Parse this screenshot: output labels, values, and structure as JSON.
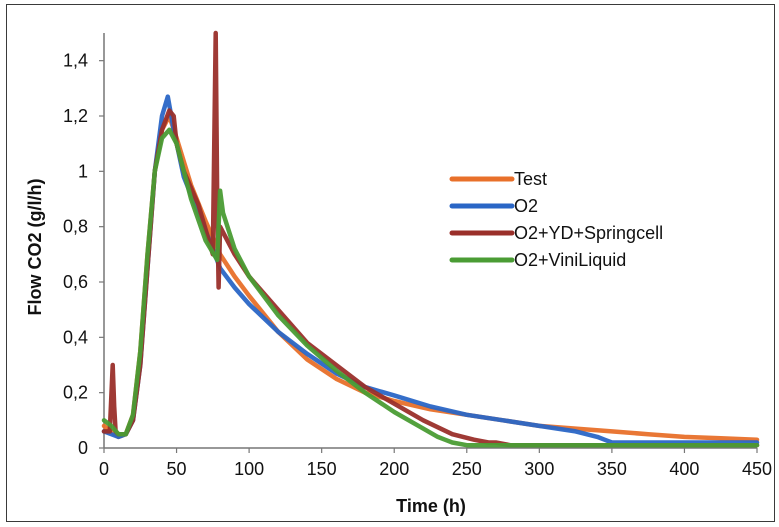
{
  "chart_data": {
    "type": "line",
    "xlabel": "Time (h)",
    "ylabel": "Flow CO2 (g/l/h)",
    "xlim": [
      0,
      450
    ],
    "ylim": [
      0,
      1.5
    ],
    "x_ticks": [
      "0",
      "50",
      "100",
      "150",
      "200",
      "250",
      "300",
      "350",
      "400",
      "450"
    ],
    "y_ticks": [
      "0",
      "0,2",
      "0,4",
      "0,6",
      "0,8",
      "1",
      "1,2",
      "1,4"
    ],
    "grid": false,
    "legend_position": "right",
    "series": [
      {
        "name": "Test",
        "color": "#e8702a",
        "x": [
          0,
          5,
          10,
          15,
          20,
          25,
          30,
          35,
          40,
          45,
          50,
          60,
          70,
          80,
          90,
          100,
          120,
          140,
          160,
          180,
          200,
          225,
          250,
          275,
          300,
          325,
          350,
          375,
          400,
          425,
          450
        ],
        "y": [
          0.08,
          0.06,
          0.04,
          0.05,
          0.12,
          0.35,
          0.7,
          1.0,
          1.15,
          1.2,
          1.12,
          0.95,
          0.82,
          0.7,
          0.62,
          0.55,
          0.42,
          0.32,
          0.25,
          0.2,
          0.17,
          0.14,
          0.12,
          0.1,
          0.08,
          0.07,
          0.06,
          0.05,
          0.04,
          0.035,
          0.03
        ]
      },
      {
        "name": "O2",
        "color": "#2a66c6",
        "x": [
          0,
          5,
          10,
          15,
          20,
          25,
          30,
          35,
          40,
          44,
          48,
          55,
          65,
          75,
          80,
          90,
          100,
          120,
          140,
          160,
          180,
          200,
          225,
          250,
          275,
          300,
          325,
          340,
          345,
          350,
          375,
          400,
          425,
          450
        ],
        "y": [
          0.06,
          0.05,
          0.04,
          0.05,
          0.1,
          0.3,
          0.65,
          1.0,
          1.2,
          1.27,
          1.15,
          0.98,
          0.85,
          0.72,
          0.65,
          0.58,
          0.52,
          0.42,
          0.34,
          0.27,
          0.22,
          0.19,
          0.15,
          0.12,
          0.1,
          0.08,
          0.06,
          0.04,
          0.03,
          0.02,
          0.02,
          0.02,
          0.02,
          0.02
        ]
      },
      {
        "name": "O2+YD+Springcell",
        "color": "#9a2f2a",
        "x": [
          0,
          4,
          6,
          7,
          8,
          10,
          15,
          20,
          25,
          30,
          35,
          40,
          45,
          48,
          50,
          55,
          65,
          75,
          77,
          78,
          79,
          80,
          90,
          100,
          120,
          140,
          160,
          180,
          200,
          220,
          240,
          255,
          265,
          270,
          280,
          300,
          350,
          400,
          450
        ],
        "y": [
          0.06,
          0.06,
          0.3,
          0.15,
          0.06,
          0.05,
          0.05,
          0.1,
          0.3,
          0.65,
          1.0,
          1.15,
          1.22,
          1.2,
          1.1,
          1.0,
          0.88,
          0.7,
          1.5,
          0.9,
          0.58,
          0.8,
          0.7,
          0.62,
          0.5,
          0.38,
          0.3,
          0.22,
          0.16,
          0.1,
          0.05,
          0.03,
          0.02,
          0.02,
          0.01,
          0.01,
          0.01,
          0.01,
          0.01
        ]
      },
      {
        "name": "O2+ViniLiquid",
        "color": "#4a9c34",
        "x": [
          0,
          5,
          10,
          15,
          20,
          25,
          30,
          35,
          40,
          45,
          50,
          60,
          70,
          78,
          80,
          82,
          90,
          100,
          120,
          140,
          160,
          180,
          200,
          220,
          230,
          235,
          240,
          250,
          300,
          350,
          400,
          450
        ],
        "y": [
          0.1,
          0.08,
          0.05,
          0.05,
          0.12,
          0.35,
          0.7,
          1.0,
          1.12,
          1.15,
          1.1,
          0.9,
          0.75,
          0.68,
          0.93,
          0.85,
          0.72,
          0.62,
          0.48,
          0.37,
          0.28,
          0.2,
          0.13,
          0.07,
          0.04,
          0.03,
          0.02,
          0.01,
          0.01,
          0.01,
          0.01,
          0.01
        ]
      }
    ]
  }
}
